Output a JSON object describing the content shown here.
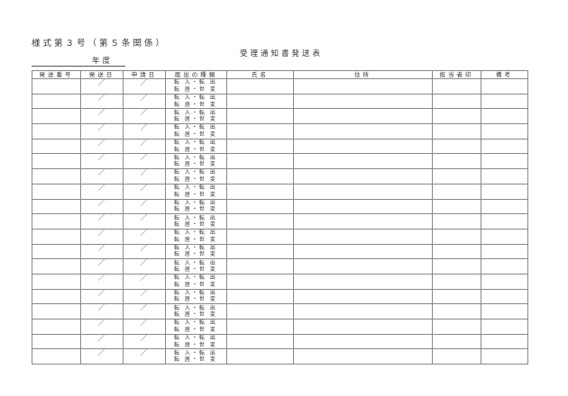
{
  "header": {
    "form_number": "様式第３号（第５条関係）",
    "title": "受理通知書発送表",
    "year_label": "年度"
  },
  "table": {
    "columns": [
      "発送番号",
      "発送日",
      "申請日",
      "届出の種類",
      "氏名",
      "住所",
      "担当者印",
      "備考"
    ],
    "rows": [
      {
        "send_date": "／",
        "apply_date": "／",
        "kind_line1": "転 入・転 出",
        "kind_line2": "転 居・世 変"
      },
      {
        "send_date": "／",
        "apply_date": "／",
        "kind_line1": "転 入・転 出",
        "kind_line2": "転 居・世 変"
      },
      {
        "send_date": "／",
        "apply_date": "／",
        "kind_line1": "転 入・転 出",
        "kind_line2": "転 居・世 変"
      },
      {
        "send_date": "／",
        "apply_date": "／",
        "kind_line1": "転 入・転 出",
        "kind_line2": "転 居・世 変"
      },
      {
        "send_date": "／",
        "apply_date": "／",
        "kind_line1": "転 入・転 出",
        "kind_line2": "転 居・世 変"
      },
      {
        "send_date": "／",
        "apply_date": "／",
        "kind_line1": "転 入・転 出",
        "kind_line2": "転 居・世 変"
      },
      {
        "send_date": "／",
        "apply_date": "／",
        "kind_line1": "転 入・転 出",
        "kind_line2": "転 居・世 変"
      },
      {
        "send_date": "／",
        "apply_date": "／",
        "kind_line1": "転 入・転 出",
        "kind_line2": "転 居・世 変"
      },
      {
        "send_date": "／",
        "apply_date": "／",
        "kind_line1": "転 入・転 出",
        "kind_line2": "転 居・世 変"
      },
      {
        "send_date": "／",
        "apply_date": "／",
        "kind_line1": "転 入・転 出",
        "kind_line2": "転 居・世 変"
      },
      {
        "send_date": "／",
        "apply_date": "／",
        "kind_line1": "転 入・転 出",
        "kind_line2": "転 居・世 変"
      },
      {
        "send_date": "／",
        "apply_date": "／",
        "kind_line1": "転 入・転 出",
        "kind_line2": "転 居・世 変"
      },
      {
        "send_date": "／",
        "apply_date": "／",
        "kind_line1": "転 入・転 出",
        "kind_line2": "転 居・世 変"
      },
      {
        "send_date": "／",
        "apply_date": "／",
        "kind_line1": "転 入・転 出",
        "kind_line2": "転 居・世 変"
      },
      {
        "send_date": "／",
        "apply_date": "／",
        "kind_line1": "転 入・転 出",
        "kind_line2": "転 居・世 変"
      },
      {
        "send_date": "／",
        "apply_date": "／",
        "kind_line1": "転 入・転 出",
        "kind_line2": "転 居・世 変"
      },
      {
        "send_date": "／",
        "apply_date": "／",
        "kind_line1": "転 入・転 出",
        "kind_line2": "転 居・世 変"
      },
      {
        "send_date": "／",
        "apply_date": "／",
        "kind_line1": "転 入・転 出",
        "kind_line2": "転 居・世 変"
      },
      {
        "send_date": "／",
        "apply_date": "／",
        "kind_line1": "転 入・転 出",
        "kind_line2": "転 居・世 変"
      }
    ]
  }
}
